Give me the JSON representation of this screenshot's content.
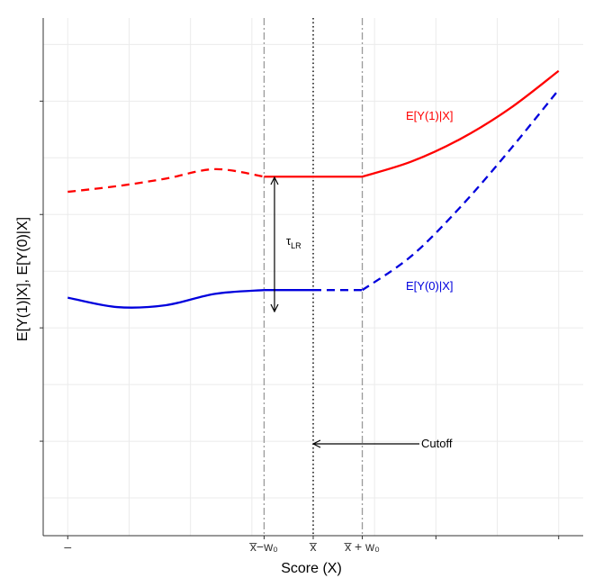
{
  "chart_data": {
    "type": "line",
    "xlabel": "Score (X)",
    "ylabel": "E[Y(1)|X], E[Y(0)|X]",
    "xlim": [
      -0.05,
      1.05
    ],
    "ylim": [
      0.05,
      1.42
    ],
    "x_tick_labels": [
      {
        "x": 0.0,
        "text": "–"
      },
      {
        "x": 0.4,
        "text": "x̅−w₀"
      },
      {
        "x": 0.5,
        "text": "x̅"
      },
      {
        "x": 0.6,
        "text": "x̅ + w₀"
      }
    ],
    "reference_lines": [
      {
        "x": 0.4,
        "style": "dashdot"
      },
      {
        "x": 0.5,
        "style": "dotted"
      },
      {
        "x": 0.6,
        "style": "dashdot"
      }
    ],
    "series": [
      {
        "name": "E[Y(1)|X]",
        "color": "#ff0000",
        "segments": [
          {
            "style": "dashed",
            "x": [
              0.0,
              0.1,
              0.2,
              0.3,
              0.4
            ],
            "y": [
              0.96,
              0.975,
              0.995,
              1.02,
              1.0
            ]
          },
          {
            "style": "solid",
            "x": [
              0.4,
              0.6
            ],
            "y": [
              1.0,
              1.0
            ]
          },
          {
            "style": "solid",
            "x": [
              0.6,
              0.7,
              0.8,
              0.9,
              1.0
            ],
            "y": [
              1.0,
              1.04,
              1.1,
              1.18,
              1.28
            ]
          }
        ]
      },
      {
        "name": "E[Y(0)|X]",
        "color": "#0000dd",
        "segments": [
          {
            "style": "solid",
            "x": [
              0.0,
              0.1,
              0.2,
              0.3,
              0.4
            ],
            "y": [
              0.68,
              0.655,
              0.66,
              0.69,
              0.7
            ]
          },
          {
            "style": "solid",
            "x": [
              0.4,
              0.5
            ],
            "y": [
              0.7,
              0.7
            ]
          },
          {
            "style": "dashed",
            "x": [
              0.5,
              0.6
            ],
            "y": [
              0.7,
              0.7
            ]
          },
          {
            "style": "dashed",
            "x": [
              0.6,
              0.7,
              0.8,
              0.9,
              1.0
            ],
            "y": [
              0.7,
              0.79,
              0.92,
              1.07,
              1.23
            ]
          }
        ]
      }
    ],
    "annotations": {
      "series_label_1": {
        "text": "E[Y(1)|X]",
        "color": "#ff0000"
      },
      "series_label_0": {
        "text": "E[Y(0)|X]",
        "color": "#0000dd"
      },
      "tau_symbol": "τ",
      "tau_subscript": "LR",
      "cutoff_label": "Cutoff"
    },
    "grid": true,
    "legend": "none"
  }
}
